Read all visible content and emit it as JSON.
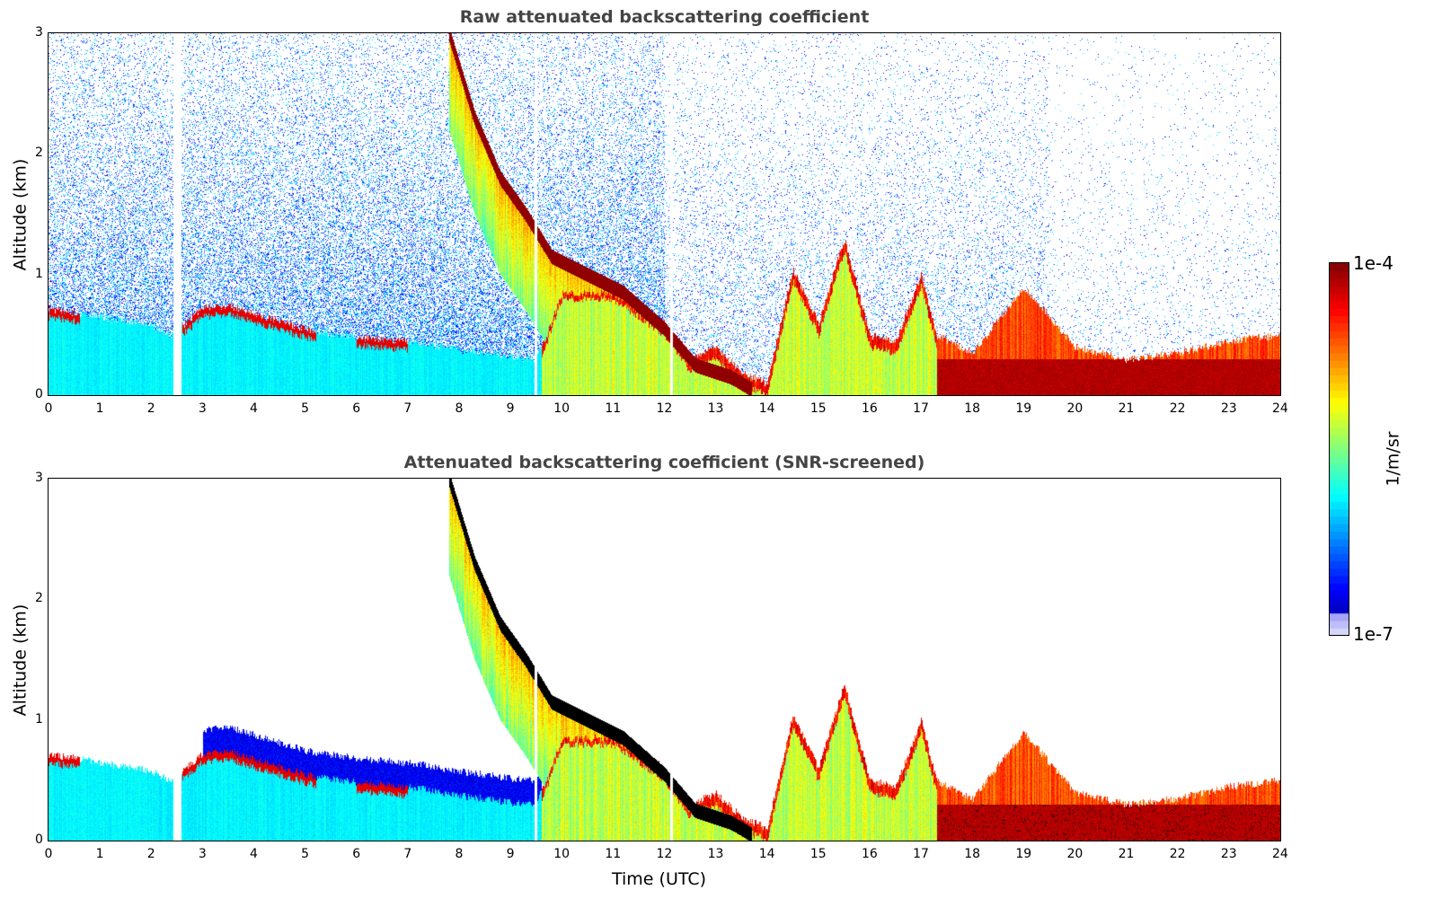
{
  "chart_data": [
    {
      "type": "heatmap",
      "title": "Raw attenuated backscattering coefficient",
      "xlabel": "",
      "ylabel": "Altitude (km)",
      "xlim": [
        0,
        24
      ],
      "ylim": [
        0,
        3
      ],
      "xticks": [
        "0",
        "1",
        "2",
        "3",
        "4",
        "5",
        "6",
        "7",
        "8",
        "9",
        "10",
        "11",
        "12",
        "13",
        "14",
        "15",
        "16",
        "17",
        "18",
        "19",
        "20",
        "21",
        "22",
        "23",
        "24"
      ],
      "yticks": [
        "0",
        "1",
        "2",
        "3"
      ],
      "screened": false
    },
    {
      "type": "heatmap",
      "title": "Attenuated backscattering coefficient (SNR-screened)",
      "xlabel": "Time (UTC)",
      "ylabel": "Altitude (km)",
      "xlim": [
        0,
        24
      ],
      "ylim": [
        0,
        3
      ],
      "xticks": [
        "0",
        "1",
        "2",
        "3",
        "4",
        "5",
        "6",
        "7",
        "8",
        "9",
        "10",
        "11",
        "12",
        "13",
        "14",
        "15",
        "16",
        "17",
        "18",
        "19",
        "20",
        "21",
        "22",
        "23",
        "24"
      ],
      "yticks": [
        "0",
        "1",
        "2",
        "3"
      ],
      "screened": true
    }
  ],
  "colorbar": {
    "label": "1/m/sr",
    "min_label": "1e-7",
    "max_label": "1e-4",
    "min": 1e-07,
    "max": 0.0001,
    "scale": "log",
    "colormap": "jet"
  },
  "features": {
    "aerosol_layer_top_km": {
      "time": [
        0,
        1,
        2,
        2.4,
        3,
        3.5,
        4,
        5,
        6,
        7,
        8,
        9,
        9.5,
        10,
        11,
        12,
        12.5,
        13,
        13.5,
        14,
        14.5,
        15,
        15.5,
        16,
        16.5,
        17,
        17.3,
        18,
        19,
        20,
        21,
        22,
        23,
        24
      ],
      "height": [
        0.72,
        0.65,
        0.58,
        0.5,
        0.72,
        0.75,
        0.68,
        0.55,
        0.48,
        0.45,
        0.38,
        0.32,
        0.3,
        0.9,
        0.9,
        0.6,
        0.3,
        0.4,
        0.2,
        0.1,
        1.05,
        0.6,
        1.3,
        0.5,
        0.45,
        1.0,
        0.5,
        0.35,
        0.9,
        0.4,
        0.3,
        0.35,
        0.45,
        0.5
      ]
    },
    "descending_layer_km": {
      "time": [
        7.8,
        8.3,
        8.8,
        9.3,
        9.8,
        10.5,
        11.2,
        12,
        12.6,
        13.3,
        13.7
      ],
      "height": [
        3.0,
        2.3,
        1.8,
        1.5,
        1.15,
        1.0,
        0.85,
        0.55,
        0.25,
        0.15,
        0.05
      ]
    },
    "data_gaps_utc": [
      [
        2.42,
        2.58
      ],
      [
        9.47,
        9.52
      ],
      [
        12.1,
        12.15
      ]
    ]
  }
}
